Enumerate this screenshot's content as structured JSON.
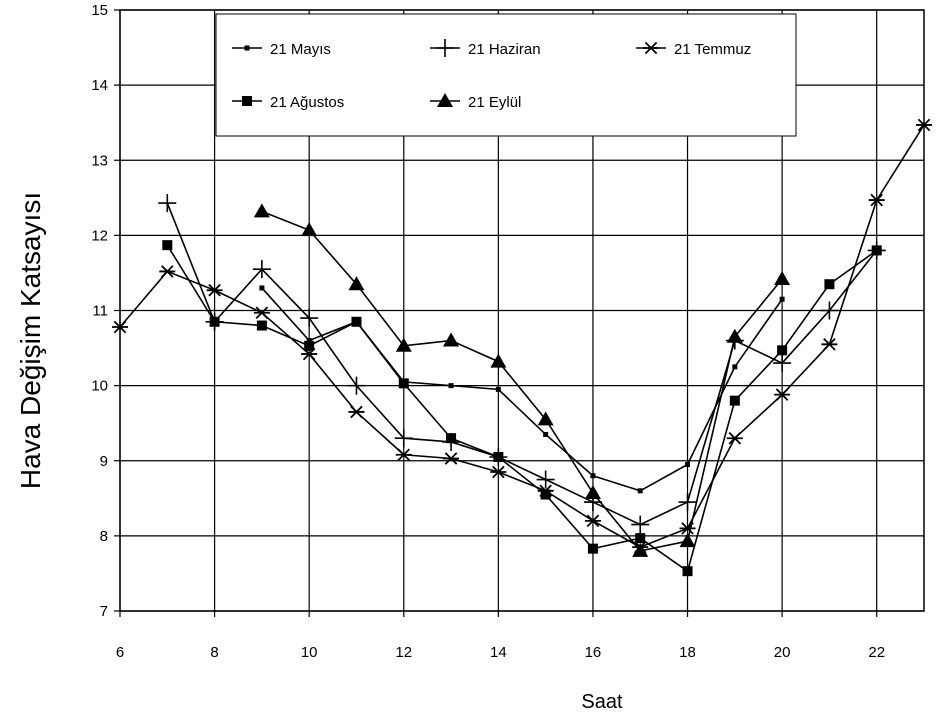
{
  "chart_data": {
    "type": "line",
    "xlabel": "Saat",
    "ylabel": "Hava Değişim Katsayısı",
    "xlim": [
      6,
      23
    ],
    "ylim": [
      7,
      15
    ],
    "xticks": [
      6,
      8,
      10,
      12,
      14,
      16,
      18,
      20,
      22
    ],
    "yticks": [
      7,
      8,
      9,
      10,
      11,
      12,
      13,
      14,
      15
    ],
    "grid": true,
    "legend_position": "top",
    "series": [
      {
        "name": "21 Mayıs",
        "marker": "small-square",
        "x": [
          9,
          10,
          11,
          12,
          13,
          14,
          15,
          16,
          17,
          18,
          19,
          20
        ],
        "y": [
          11.3,
          10.6,
          10.85,
          10.05,
          10.0,
          9.95,
          9.35,
          8.8,
          8.6,
          8.95,
          10.25,
          11.15
        ]
      },
      {
        "name": "21 Haziran",
        "marker": "plus",
        "x": [
          7,
          8,
          9,
          10,
          11,
          12,
          13,
          14,
          15,
          16,
          17,
          18,
          19,
          20,
          21,
          22
        ],
        "y": [
          12.43,
          10.85,
          11.55,
          10.9,
          10.0,
          9.3,
          9.25,
          9.05,
          8.75,
          8.45,
          8.15,
          8.45,
          10.6,
          10.3,
          11.0,
          11.8
        ]
      },
      {
        "name": "21 Temmuz",
        "marker": "asterisk",
        "x": [
          6,
          7,
          8,
          9,
          10,
          11,
          12,
          13,
          14,
          15,
          16,
          17,
          18,
          19,
          20,
          21,
          22,
          23
        ],
        "y": [
          10.78,
          11.52,
          11.27,
          10.97,
          10.42,
          9.65,
          9.08,
          9.03,
          8.85,
          8.6,
          8.2,
          7.85,
          8.1,
          9.3,
          9.88,
          10.55,
          12.47,
          13.47
        ]
      },
      {
        "name": "21 Ağustos",
        "marker": "square",
        "x": [
          7,
          8,
          9,
          10,
          11,
          12,
          13,
          14,
          15,
          16,
          17,
          18,
          19,
          20,
          21,
          22
        ],
        "y": [
          11.87,
          10.85,
          10.8,
          10.53,
          10.85,
          10.03,
          9.3,
          9.05,
          8.55,
          7.83,
          7.97,
          7.53,
          9.8,
          10.47,
          11.35,
          11.8
        ]
      },
      {
        "name": "21 Eylül",
        "marker": "triangle",
        "x": [
          9,
          10,
          11,
          12,
          13,
          14,
          15,
          16,
          17,
          18,
          19,
          20
        ],
        "y": [
          12.32,
          12.07,
          11.35,
          10.53,
          10.6,
          10.32,
          9.55,
          8.57,
          7.8,
          7.93,
          10.65,
          11.42
        ]
      }
    ]
  }
}
